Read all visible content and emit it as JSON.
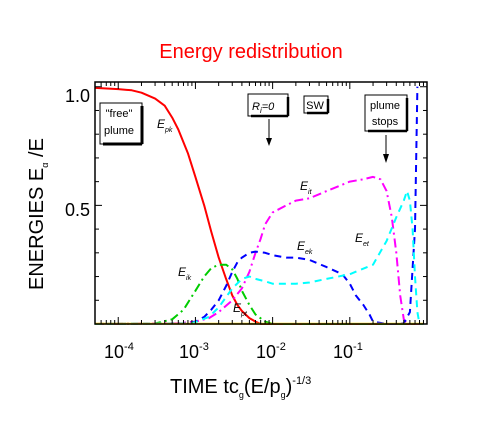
{
  "chart_data": {
    "type": "line",
    "title": "Energy redistribution",
    "xscale": "log",
    "xlim": [
      5e-05,
      1.0
    ],
    "ylim": [
      0.0,
      1.02
    ],
    "yticks": [
      "0.5",
      "1.0"
    ],
    "xticks": [
      {
        "base": "10",
        "exp": "-4"
      },
      {
        "base": "10",
        "exp": "-3"
      },
      {
        "base": "10",
        "exp": "-2"
      },
      {
        "base": "10",
        "exp": "-1"
      }
    ],
    "ylabel": {
      "main": "ENERGIES E",
      "sub": "α",
      "tail": " /E"
    },
    "xlabel": {
      "main": "TIME tc",
      "sub1": "g",
      "mid": "(E/p",
      "sub2": "g",
      "close": ")",
      "exp": "-1/3"
    },
    "annotations": {
      "free_plume": [
        "\"free\"",
        "plume"
      ],
      "ri": {
        "main": "R",
        "sub": "i",
        "tail": "=0"
      },
      "sw": "SW",
      "plume_stops": [
        "plume",
        "stops"
      ]
    },
    "series": [
      {
        "label": "E",
        "sub": "pk",
        "color": "#ff0000",
        "style": "solid",
        "points": [
          [
            5e-05,
            0.995
          ],
          [
            0.0001,
            0.99
          ],
          [
            0.00015,
            0.985
          ],
          [
            0.0002,
            0.975
          ],
          [
            0.0003,
            0.95
          ],
          [
            0.0004,
            0.92
          ],
          [
            0.0005,
            0.87
          ],
          [
            0.0006,
            0.82
          ],
          [
            0.0008,
            0.72
          ],
          [
            0.001,
            0.62
          ],
          [
            0.0013,
            0.5
          ],
          [
            0.0016,
            0.39
          ],
          [
            0.002,
            0.28
          ],
          [
            0.0025,
            0.19
          ],
          [
            0.003,
            0.12
          ],
          [
            0.0035,
            0.08
          ],
          [
            0.004,
            0.055
          ],
          [
            0.005,
            0.025
          ],
          [
            0.006,
            0.01
          ],
          [
            0.007,
            0.0
          ],
          [
            0.9,
            0.0
          ]
        ]
      },
      {
        "label": "E",
        "sub": "ik",
        "color": "#00cc00",
        "style": "dashdot",
        "points": [
          [
            5e-05,
            0.0
          ],
          [
            0.0003,
            0.002
          ],
          [
            0.0005,
            0.02
          ],
          [
            0.0007,
            0.06
          ],
          [
            0.001,
            0.14
          ],
          [
            0.0013,
            0.2
          ],
          [
            0.0016,
            0.235
          ],
          [
            0.002,
            0.25
          ],
          [
            0.0025,
            0.25
          ],
          [
            0.003,
            0.23
          ],
          [
            0.0035,
            0.19
          ],
          [
            0.004,
            0.14
          ],
          [
            0.005,
            0.08
          ],
          [
            0.006,
            0.04
          ],
          [
            0.008,
            0.01
          ],
          [
            0.01,
            0.0
          ],
          [
            0.9,
            0.0
          ]
        ]
      },
      {
        "label": "E",
        "sub": "pt",
        "color": "#ff00ff",
        "style": "dashdot",
        "points": [
          [
            5e-05,
            0.0
          ],
          [
            0.0006,
            0.003
          ],
          [
            0.001,
            0.01
          ],
          [
            0.0015,
            0.025
          ],
          [
            0.002,
            0.05
          ],
          [
            0.003,
            0.1
          ],
          [
            0.004,
            0.15
          ],
          [
            0.005,
            0.22
          ],
          [
            0.006,
            0.3
          ],
          [
            0.007,
            0.36
          ],
          [
            0.008,
            0.42
          ],
          [
            0.01,
            0.47
          ],
          [
            0.015,
            0.5
          ],
          [
            0.02,
            0.52
          ],
          [
            0.03,
            0.53
          ],
          [
            0.05,
            0.56
          ],
          [
            0.1,
            0.6
          ],
          [
            0.15,
            0.61
          ],
          [
            0.2,
            0.62
          ],
          [
            0.25,
            0.61
          ],
          [
            0.3,
            0.56
          ],
          [
            0.35,
            0.45
          ],
          [
            0.4,
            0.3
          ],
          [
            0.45,
            0.12
          ],
          [
            0.5,
            0.02
          ],
          [
            0.55,
            0.0
          ],
          [
            0.9,
            0.0
          ]
        ]
      },
      {
        "label": "E",
        "sub": "ek",
        "color": "#0000ff",
        "style": "dashed",
        "points": [
          [
            5e-05,
            0.0
          ],
          [
            0.0008,
            0.003
          ],
          [
            0.001,
            0.01
          ],
          [
            0.0013,
            0.03
          ],
          [
            0.0016,
            0.06
          ],
          [
            0.002,
            0.1
          ],
          [
            0.0025,
            0.16
          ],
          [
            0.003,
            0.22
          ],
          [
            0.0035,
            0.26
          ],
          [
            0.004,
            0.28
          ],
          [
            0.005,
            0.3
          ],
          [
            0.006,
            0.305
          ],
          [
            0.008,
            0.3
          ],
          [
            0.01,
            0.29
          ],
          [
            0.015,
            0.28
          ],
          [
            0.02,
            0.28
          ],
          [
            0.03,
            0.27
          ],
          [
            0.05,
            0.24
          ],
          [
            0.08,
            0.21
          ],
          [
            0.1,
            0.17
          ],
          [
            0.12,
            0.12
          ],
          [
            0.15,
            0.08
          ],
          [
            0.18,
            0.04
          ],
          [
            0.2,
            0.01
          ],
          [
            0.3,
            0.0
          ],
          [
            0.4,
            0.0
          ],
          [
            0.5,
            0.003
          ],
          [
            0.6,
            0.05
          ],
          [
            0.7,
            0.4
          ],
          [
            0.75,
            1.0
          ]
        ]
      },
      {
        "label": "E",
        "sub": "et",
        "color": "#00ffff",
        "style": "dashed",
        "points": [
          [
            5e-05,
            0.0
          ],
          [
            0.0008,
            0.002
          ],
          [
            0.001,
            0.008
          ],
          [
            0.0015,
            0.03
          ],
          [
            0.002,
            0.07
          ],
          [
            0.003,
            0.15
          ],
          [
            0.004,
            0.19
          ],
          [
            0.005,
            0.2
          ],
          [
            0.006,
            0.19
          ],
          [
            0.008,
            0.18
          ],
          [
            0.01,
            0.17
          ],
          [
            0.02,
            0.17
          ],
          [
            0.03,
            0.175
          ],
          [
            0.05,
            0.19
          ],
          [
            0.1,
            0.21
          ],
          [
            0.2,
            0.25
          ],
          [
            0.3,
            0.35
          ],
          [
            0.4,
            0.45
          ],
          [
            0.5,
            0.52
          ],
          [
            0.55,
            0.56
          ],
          [
            0.6,
            0.52
          ],
          [
            0.65,
            0.4
          ],
          [
            0.7,
            0.2
          ],
          [
            0.75,
            0.05
          ],
          [
            0.8,
            0.0
          ],
          [
            0.9,
            0.0
          ]
        ]
      },
      {
        "label": "",
        "sub": "",
        "color": "#ffd800",
        "style": "solid",
        "points": [
          [
            5e-05,
            0.001
          ],
          [
            0.9,
            0.001
          ]
        ]
      }
    ]
  }
}
